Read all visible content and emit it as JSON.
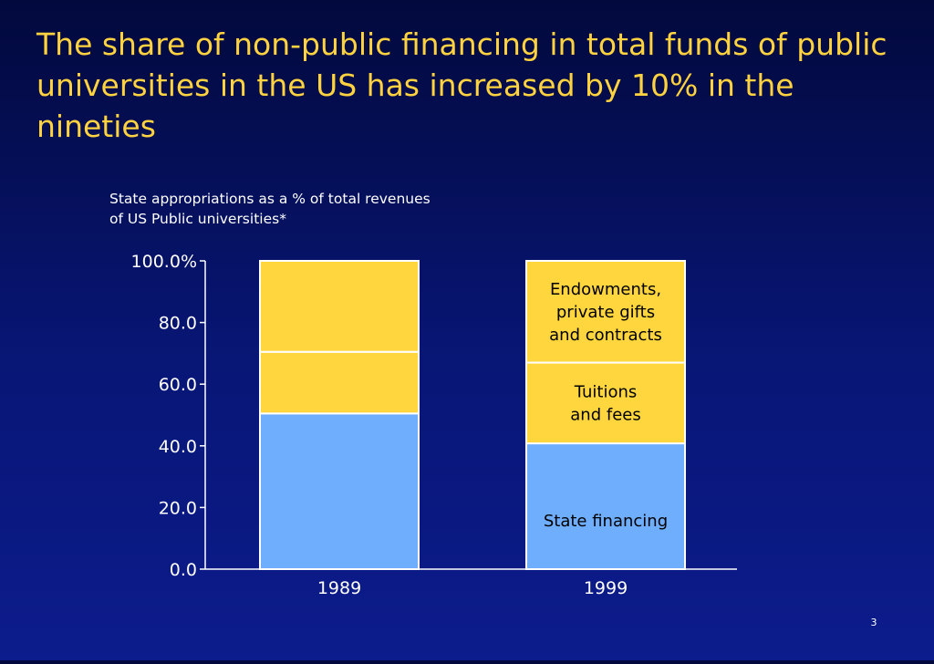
{
  "slide": {
    "title": "The share of non-public financing in total funds of public universities in the US has increased by 10% in the nineties",
    "page_number": "3"
  },
  "colors": {
    "background_top": "#02093d",
    "background_bottom": "#0c1c8c",
    "title": "#ffd23f",
    "state_financing": "#6eaefc",
    "tuitions": "#ffd63d",
    "endowments": "#ffd63d",
    "segment_border": "#ffffff",
    "axis": "#ffffff",
    "label_text": "#000000"
  },
  "chart_data": {
    "type": "bar",
    "stacked": true,
    "subtitle": "State appropriations as a % of total revenues of US Public universities*",
    "categories": [
      "1989",
      "1999"
    ],
    "series": [
      {
        "name": "State financing",
        "values": [
          50.5,
          40.8
        ]
      },
      {
        "name": "Tuitions and fees",
        "values": [
          20.0,
          26.2
        ]
      },
      {
        "name": "Endowments, private gifts and contracts",
        "values": [
          29.5,
          33.0
        ]
      }
    ],
    "segment_labels": [
      {
        "category": "1999",
        "series": "State financing",
        "lines": [
          "State financing"
        ]
      },
      {
        "category": "1999",
        "series": "Tuitions and fees",
        "lines": [
          "Tuitions",
          "and fees"
        ]
      },
      {
        "category": "1999",
        "series": "Endowments, private gifts and contracts",
        "lines": [
          "Endowments,",
          "private gifts",
          "and contracts"
        ]
      }
    ],
    "yaxis": {
      "ticks": [
        0,
        20,
        40,
        60,
        80,
        100
      ],
      "tick_labels": [
        "0.0",
        "20.0",
        "40.0",
        "60.0",
        "80.0",
        "100.0%"
      ],
      "ylim": [
        0,
        100
      ]
    },
    "grid": false
  }
}
